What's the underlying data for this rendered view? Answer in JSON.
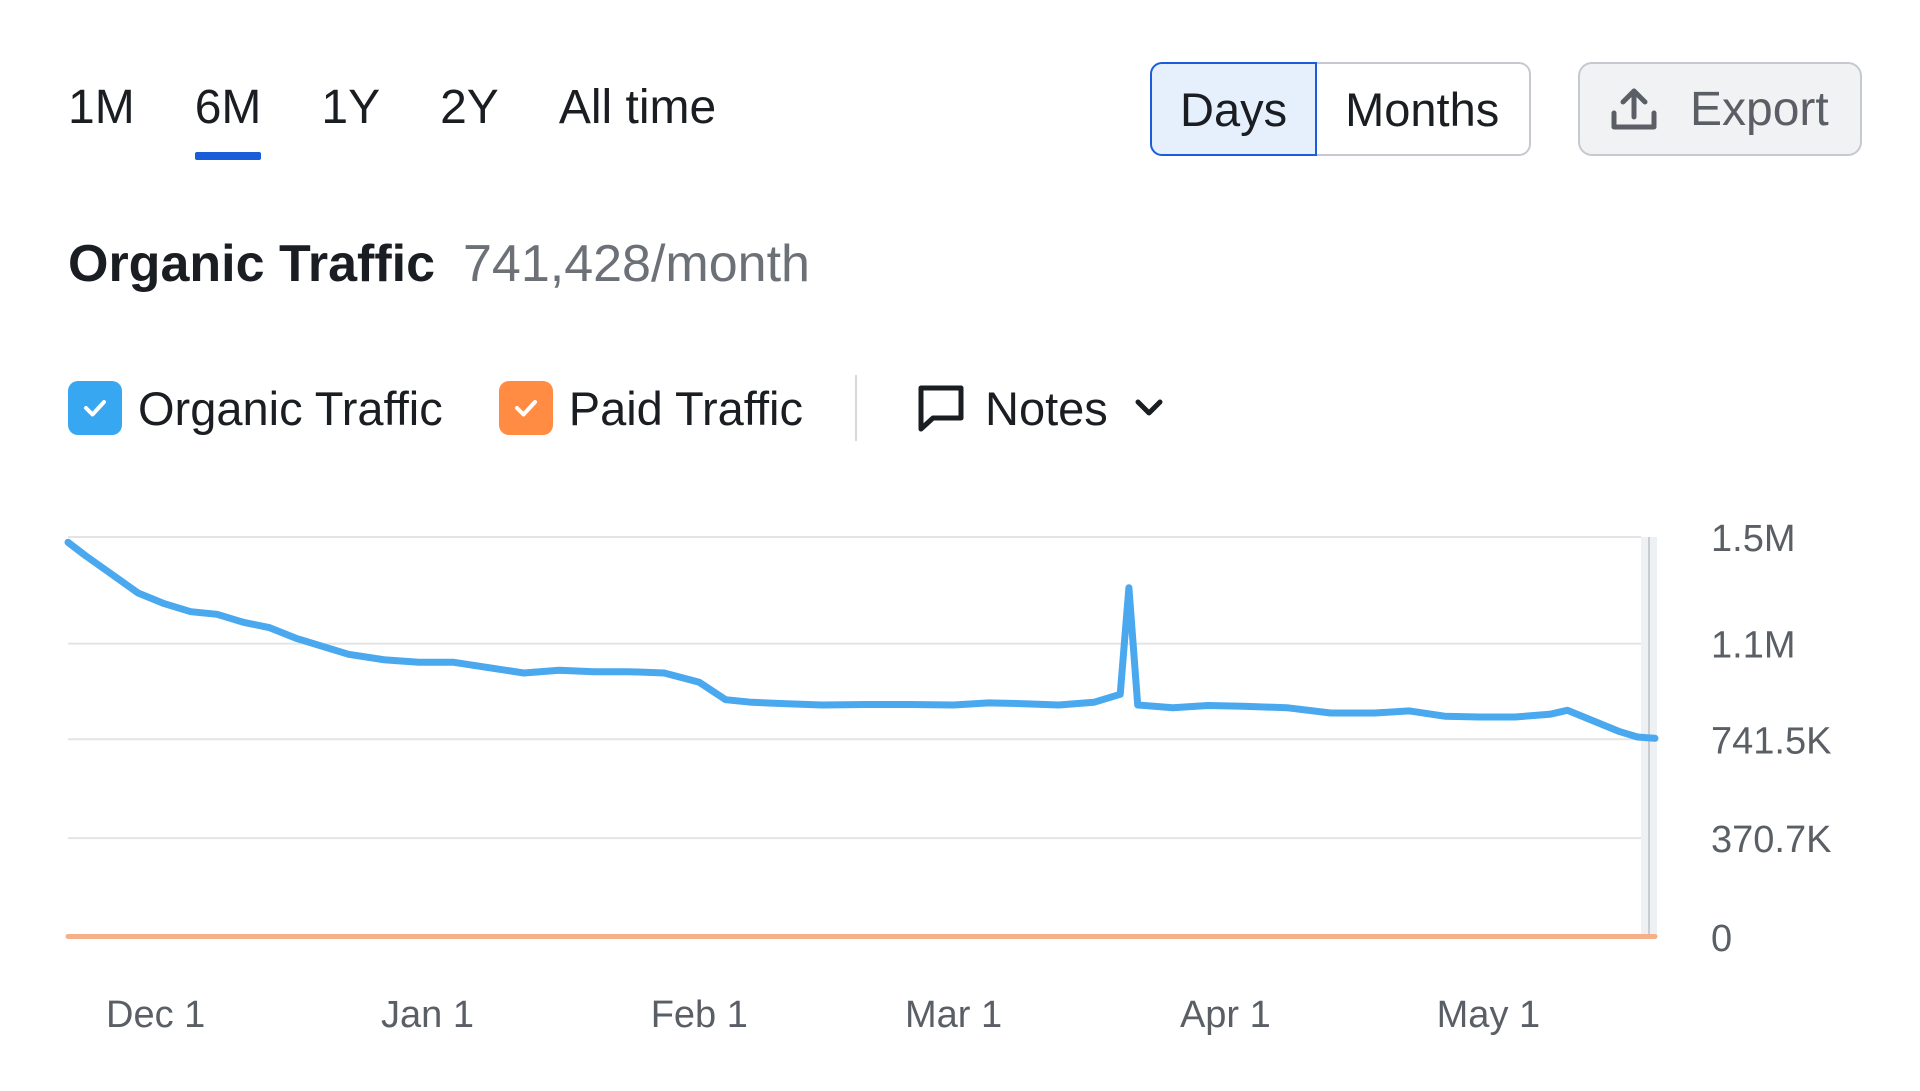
{
  "periods": {
    "items": [
      "1M",
      "6M",
      "1Y",
      "2Y",
      "All time"
    ],
    "active": "6M"
  },
  "granularity": {
    "days_label": "Days",
    "months_label": "Months",
    "selected": "Days"
  },
  "export": {
    "label": "Export",
    "icon": "upload-icon"
  },
  "heading": {
    "title": "Organic Traffic",
    "value": "741,428/month"
  },
  "legend": {
    "items": [
      {
        "label": "Organic Traffic",
        "color": "#37a7f2",
        "checked": true
      },
      {
        "label": "Paid Traffic",
        "color": "#ff8c42",
        "checked": true
      }
    ],
    "notes_label": "Notes",
    "notes_icon": "comment-icon",
    "notes_chevron": "chevron-down-icon"
  },
  "chart_data": {
    "type": "line",
    "x_tick_labels": [
      "Dec 1",
      "Jan 1",
      "Feb 1",
      "Mar 1",
      "Apr 1",
      "May 1"
    ],
    "y_tick_labels": [
      "0",
      "370.7K",
      "741.5K",
      "1.1M",
      "1.5M"
    ],
    "y_tick_values": [
      0,
      370700,
      741500,
      1100000,
      1500000
    ],
    "ylim": [
      0,
      1500000
    ],
    "x_range": [
      "2023-11-21",
      "2024-05-20"
    ],
    "grid": true,
    "series": [
      {
        "name": "Organic Traffic",
        "color": "#4aa8ee",
        "points": [
          [
            "2023-11-21",
            1480000
          ],
          [
            "2023-11-23",
            1430000
          ],
          [
            "2023-11-26",
            1360000
          ],
          [
            "2023-11-29",
            1290000
          ],
          [
            "2023-12-02",
            1250000
          ],
          [
            "2023-12-05",
            1220000
          ],
          [
            "2023-12-08",
            1210000
          ],
          [
            "2023-12-11",
            1180000
          ],
          [
            "2023-12-14",
            1160000
          ],
          [
            "2023-12-17",
            1120000
          ],
          [
            "2023-12-20",
            1090000
          ],
          [
            "2023-12-23",
            1060000
          ],
          [
            "2023-12-27",
            1040000
          ],
          [
            "2023-12-31",
            1030000
          ],
          [
            "2024-01-04",
            1030000
          ],
          [
            "2024-01-08",
            1010000
          ],
          [
            "2024-01-12",
            990000
          ],
          [
            "2024-01-16",
            1000000
          ],
          [
            "2024-01-20",
            995000
          ],
          [
            "2024-01-24",
            995000
          ],
          [
            "2024-01-28",
            990000
          ],
          [
            "2024-02-01",
            955000
          ],
          [
            "2024-02-04",
            890000
          ],
          [
            "2024-02-07",
            880000
          ],
          [
            "2024-02-11",
            875000
          ],
          [
            "2024-02-15",
            870000
          ],
          [
            "2024-02-20",
            872000
          ],
          [
            "2024-02-25",
            872000
          ],
          [
            "2024-03-01",
            870000
          ],
          [
            "2024-03-05",
            878000
          ],
          [
            "2024-03-09",
            875000
          ],
          [
            "2024-03-13",
            870000
          ],
          [
            "2024-03-17",
            880000
          ],
          [
            "2024-03-20",
            910000
          ],
          [
            "2024-03-21",
            1310000
          ],
          [
            "2024-03-22",
            870000
          ],
          [
            "2024-03-26",
            860000
          ],
          [
            "2024-03-30",
            868000
          ],
          [
            "2024-04-03",
            865000
          ],
          [
            "2024-04-08",
            860000
          ],
          [
            "2024-04-13",
            840000
          ],
          [
            "2024-04-18",
            840000
          ],
          [
            "2024-04-22",
            848000
          ],
          [
            "2024-04-26",
            828000
          ],
          [
            "2024-04-30",
            825000
          ],
          [
            "2024-05-04",
            825000
          ],
          [
            "2024-05-08",
            835000
          ],
          [
            "2024-05-10",
            850000
          ],
          [
            "2024-05-13",
            810000
          ],
          [
            "2024-05-16",
            770000
          ],
          [
            "2024-05-18",
            750000
          ],
          [
            "2024-05-20",
            745000
          ]
        ]
      },
      {
        "name": "Paid Traffic",
        "color": "#f5b08a",
        "points": [
          [
            "2023-11-21",
            2000
          ],
          [
            "2024-05-20",
            2000
          ]
        ]
      }
    ]
  }
}
